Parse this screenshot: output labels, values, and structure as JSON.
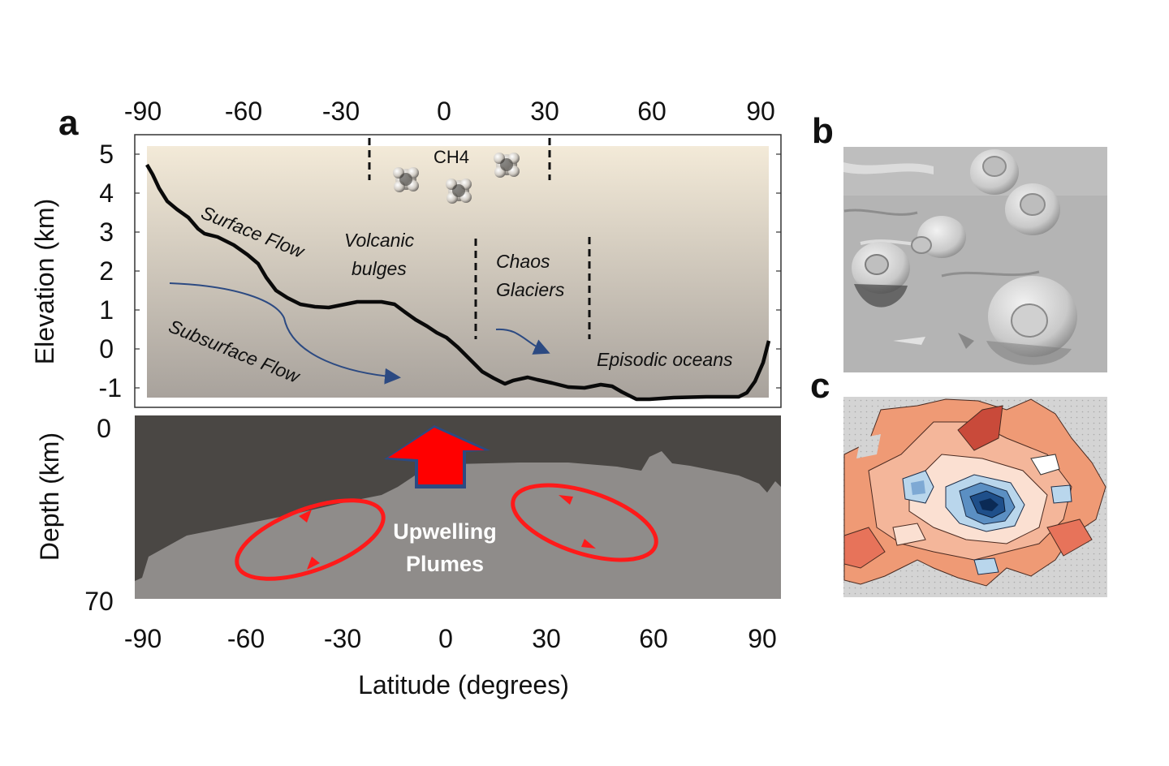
{
  "panels": {
    "a": {
      "letter": "a",
      "top_axis_ticks": [
        "-90",
        "-60",
        "-30",
        "0",
        "30",
        "60",
        "90"
      ],
      "bottom_axis_ticks": [
        "-90",
        "-60",
        "-30",
        "0",
        "30",
        "60",
        "90"
      ],
      "elevation_ticks": [
        "5",
        "4",
        "3",
        "2",
        "1",
        "0",
        "-1"
      ],
      "depth_ticks": [
        "0",
        "70"
      ],
      "elevation_label": "Elevation (km)",
      "depth_label": "Depth (km)",
      "x_label": "Latitude (degrees)",
      "annotations": {
        "surface_flow": "Surface Flow",
        "volcanic_1": "Volcanic",
        "volcanic_2": "bulges",
        "ch4": "CH4",
        "chaos_1": "Chaos",
        "chaos_2": "Glaciers",
        "subsurface_flow": "Subsurface Flow",
        "episodic": "Episodic oceans",
        "upwelling_1": "Upwelling",
        "upwelling_2": "Plumes"
      },
      "colors": {
        "elevation_bg_top": "#f3ead8",
        "elevation_bg_bottom": "#a8a29c",
        "crust": "#4a4744",
        "mantle": "#8f8c8a",
        "plume_arrow": "#ff0000",
        "flow_arrow": "#2c4a82"
      }
    },
    "b": {
      "letter": "b"
    },
    "c": {
      "letter": "c"
    }
  }
}
